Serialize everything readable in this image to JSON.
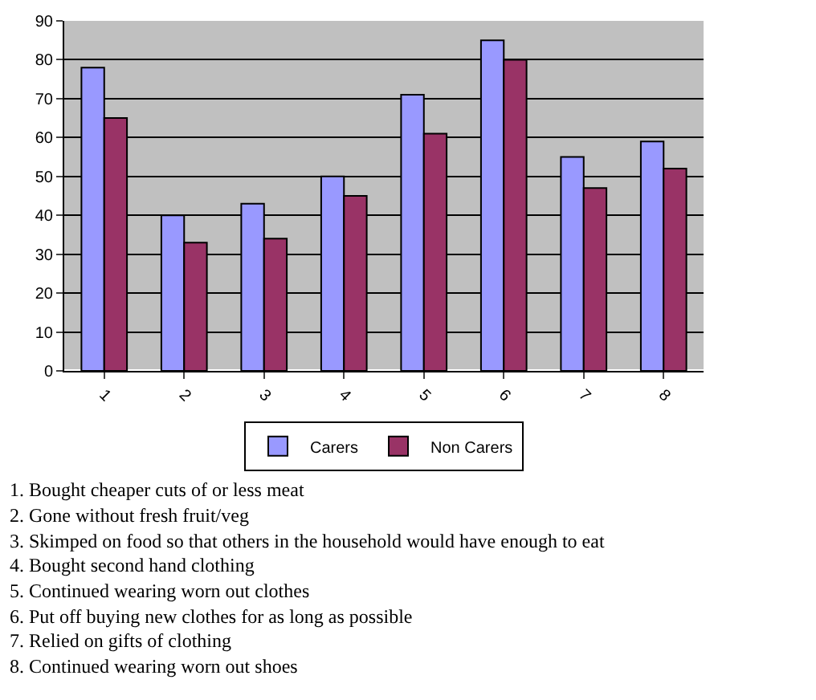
{
  "chart_data": {
    "type": "bar",
    "categories": [
      "1",
      "2",
      "3",
      "4",
      "5",
      "6",
      "7",
      "8"
    ],
    "series": [
      {
        "name": "Carers",
        "color": "#9999ff",
        "values": [
          78,
          40,
          43,
          50,
          71,
          85,
          55,
          59
        ]
      },
      {
        "name": "Non Carers",
        "color": "#993366",
        "values": [
          65,
          33,
          34,
          45,
          61,
          80,
          47,
          52
        ]
      }
    ],
    "ylim": [
      0,
      90
    ],
    "yticks": [
      0,
      10,
      20,
      30,
      40,
      50,
      60,
      70,
      80,
      90
    ],
    "grid": "y",
    "legend": "bottom",
    "annotations": [
      "1. Bought cheaper cuts of or less meat",
      "2. Gone without fresh fruit/veg",
      "3. Skimped on food so that others in the household would have enough to eat",
      "4. Bought second hand clothing",
      "5. Continued wearing worn out clothes",
      "6. Put off buying new clothes for as long as possible",
      "7. Relied on gifts of clothing",
      "8. Continued wearing worn out shoes"
    ]
  }
}
